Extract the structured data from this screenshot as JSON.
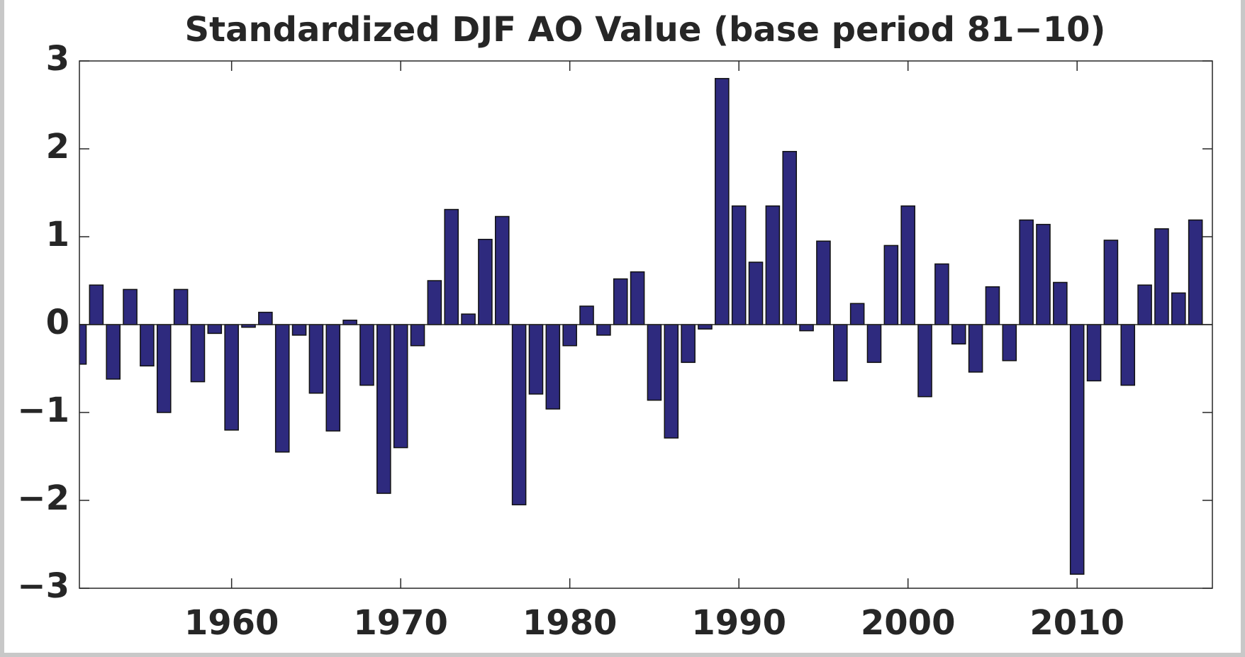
{
  "chart_data": {
    "type": "bar",
    "title": "Standardized DJF AO Value (base period 81-10)",
    "x": [
      1951,
      1952,
      1953,
      1954,
      1955,
      1956,
      1957,
      1958,
      1959,
      1960,
      1961,
      1962,
      1963,
      1964,
      1965,
      1966,
      1967,
      1968,
      1969,
      1970,
      1971,
      1972,
      1973,
      1974,
      1975,
      1976,
      1977,
      1978,
      1979,
      1980,
      1981,
      1982,
      1983,
      1984,
      1985,
      1986,
      1987,
      1988,
      1989,
      1990,
      1991,
      1992,
      1993,
      1994,
      1995,
      1996,
      1997,
      1998,
      1999,
      2000,
      2001,
      2002,
      2003,
      2004,
      2005,
      2006,
      2007,
      2008,
      2009,
      2010,
      2011,
      2012,
      2013,
      2014,
      2015,
      2016,
      2017
    ],
    "values": [
      -0.45,
      0.45,
      -0.62,
      0.4,
      -0.47,
      -1.0,
      0.4,
      -0.65,
      -0.1,
      -1.2,
      -0.03,
      0.14,
      -1.45,
      -0.12,
      -0.78,
      -1.21,
      0.05,
      -0.69,
      -1.92,
      -1.4,
      -0.24,
      0.5,
      1.31,
      0.12,
      0.97,
      1.23,
      -2.05,
      -0.79,
      -0.96,
      -0.24,
      0.21,
      -0.12,
      0.52,
      0.6,
      -0.86,
      -1.29,
      -0.43,
      -0.05,
      2.8,
      1.35,
      0.71,
      1.35,
      1.97,
      -0.07,
      0.95,
      -0.64,
      0.24,
      -0.43,
      0.9,
      1.35,
      -0.82,
      0.69,
      -0.22,
      -0.54,
      0.43,
      -0.41,
      1.19,
      1.14,
      0.48,
      -2.84,
      -0.64,
      0.96,
      -0.69,
      0.45,
      1.09,
      0.36,
      1.19
    ],
    "color": "#2e2a7e",
    "xlim": [
      1951,
      2018
    ],
    "xticks": [
      1960,
      1970,
      1980,
      1990,
      2000,
      2010
    ],
    "ylim": [
      -3,
      3
    ],
    "yticks": [
      -3,
      -2,
      -1,
      0,
      1,
      2,
      3
    ]
  }
}
